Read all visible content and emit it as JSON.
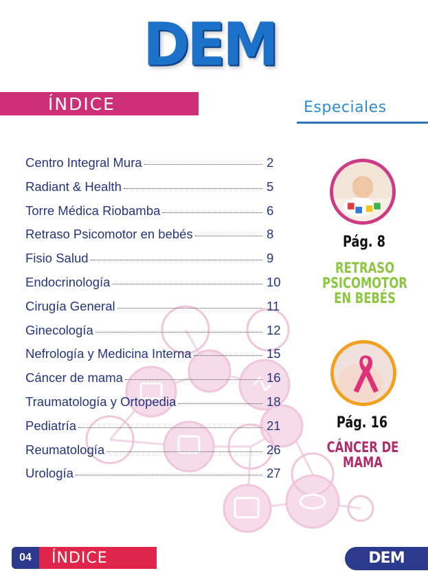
{
  "header": {
    "logo_text": "DEM",
    "index_label": "ÍNDICE",
    "specials_label": "Especiales"
  },
  "toc": [
    {
      "title": "Centro Integral Mura",
      "page": "2"
    },
    {
      "title": "Radiant & Health",
      "page": "5"
    },
    {
      "title": "Torre Médica Riobamba",
      "page": "6"
    },
    {
      "title": "Retraso Psicomotor en bebés",
      "page": "8"
    },
    {
      "title": "Fisio Salud",
      "page": "9"
    },
    {
      "title": "Endocrinología",
      "page": "10"
    },
    {
      "title": "Cirugía General",
      "page": "11"
    },
    {
      "title": "Ginecología",
      "page": "12"
    },
    {
      "title": "Nefrología y Medicina Interna",
      "page": "15"
    },
    {
      "title": "Cáncer de mama",
      "page": "16"
    },
    {
      "title": "Traumatología y Ortopedia",
      "page": "18"
    },
    {
      "title": "Pediatría",
      "page": "21"
    },
    {
      "title": "Reumatología",
      "page": "26"
    },
    {
      "title": "Urología",
      "page": "27"
    }
  ],
  "specials": [
    {
      "page_label": "Pág. 8",
      "heading_line1": "RETRASO",
      "heading_line2": "PSICOMOTOR",
      "heading_line3": "EN BEBÉS",
      "image": "baby-playing-blocks-photo"
    },
    {
      "page_label": "Pág. 16",
      "heading_line1": "CÁNCER DE",
      "heading_line2": "MAMA",
      "heading_line3": "",
      "image": "pink-ribbon-photo"
    }
  ],
  "footer": {
    "page_number": "04",
    "section_label": "ÍNDICE",
    "logo_text": "DEM"
  },
  "colors": {
    "brand_blue": "#1c72c9",
    "navy": "#2b3a8c",
    "magenta": "#cc2f76",
    "footer_red": "#e0254a",
    "green": "#8cc63f",
    "plum": "#b12c6b",
    "orange": "#f2a11f"
  }
}
